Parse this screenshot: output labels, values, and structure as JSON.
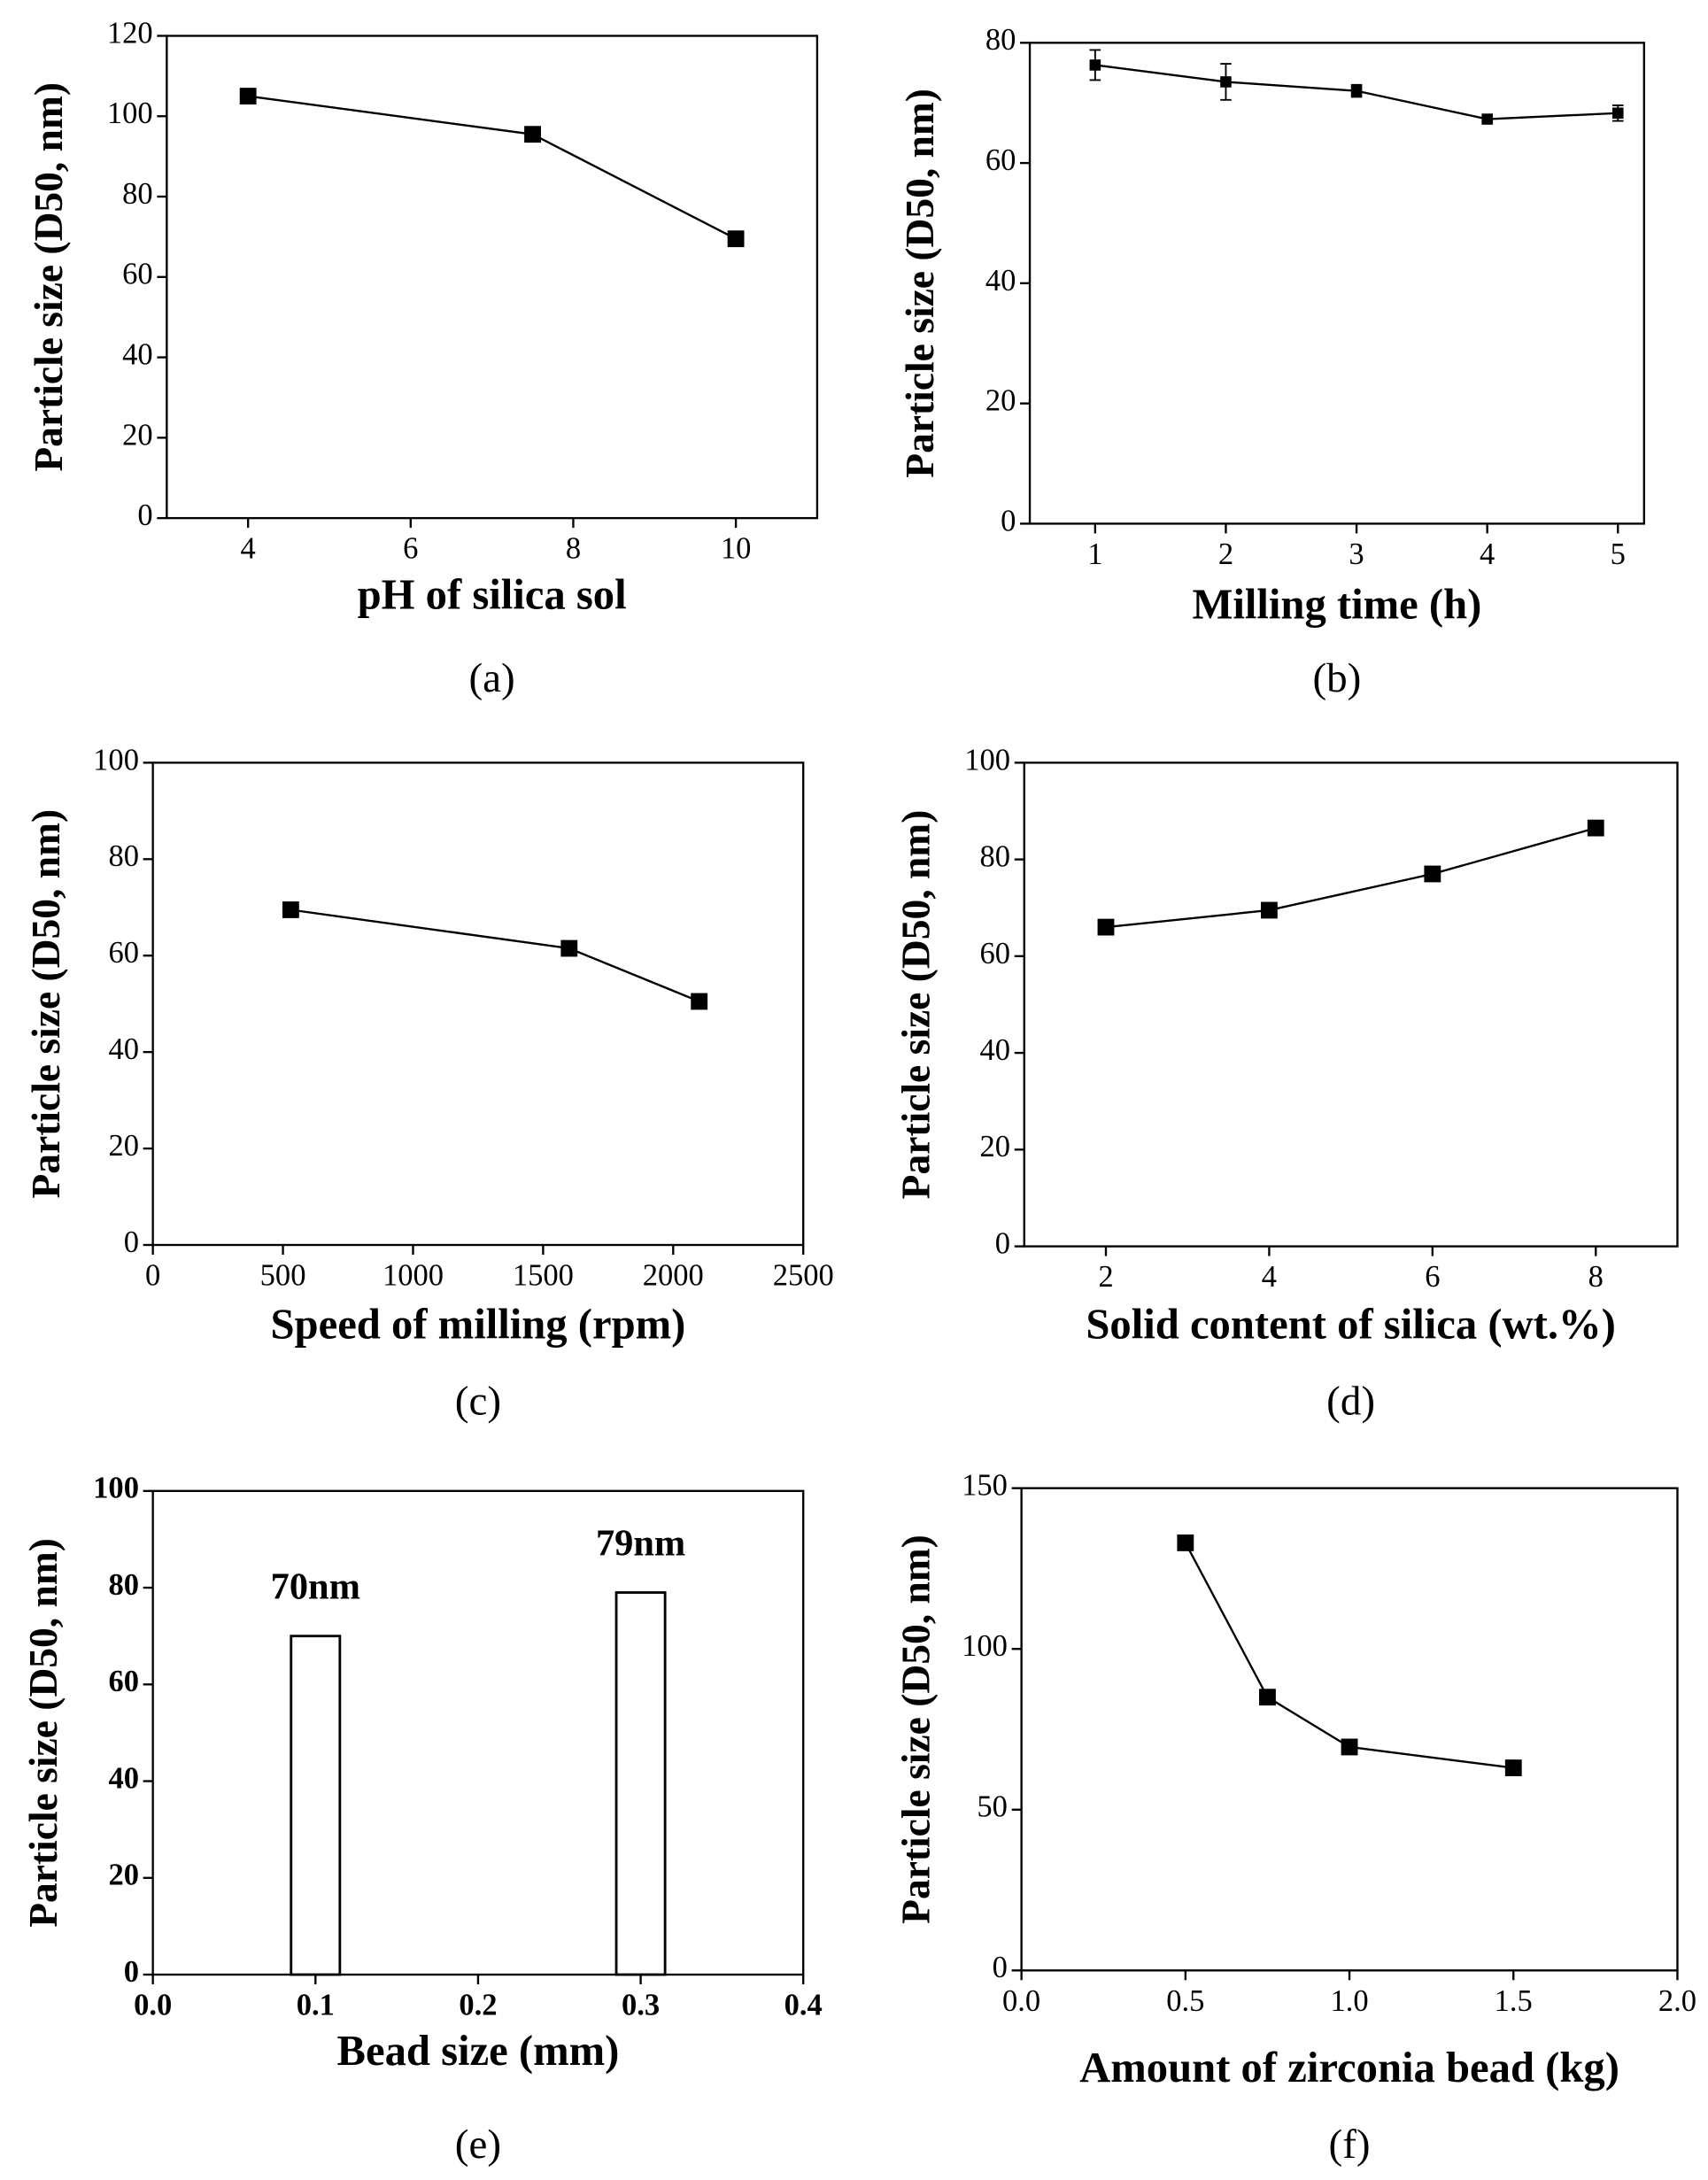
{
  "chart_data": [
    {
      "type": "line",
      "xlabel": "pH of silica sol",
      "ylabel": "Particle size (D50, nm)",
      "panel": "(a)",
      "x": [
        4,
        7.5,
        10
      ],
      "values": [
        105,
        95.5,
        69.5
      ],
      "color": "#000000",
      "xlim": [
        3,
        11
      ],
      "xticks": [
        4,
        6,
        8,
        10
      ],
      "ylim": [
        0,
        120
      ],
      "yticks": [
        0,
        20,
        40,
        60,
        80,
        100,
        120
      ]
    },
    {
      "type": "line",
      "xlabel": "Milling time (h)",
      "ylabel": "Particle size (D50, nm)",
      "panel": "(b)",
      "x": [
        1,
        2,
        3,
        4,
        5
      ],
      "values": [
        76.3,
        73.5,
        72,
        67.3,
        68.3
      ],
      "errors": [
        2.5,
        3,
        1,
        0.5,
        1.3
      ],
      "color": "#000000",
      "xlim": [
        0.5,
        5.2
      ],
      "xticks": [
        1,
        2,
        3,
        4,
        5
      ],
      "ylim": [
        0,
        80
      ],
      "yticks": [
        0,
        20,
        40,
        60,
        80
      ]
    },
    {
      "type": "line",
      "xlabel": "Speed of milling (rpm)",
      "ylabel": "Particle size (D50, nm)",
      "panel": "(c)",
      "x": [
        530,
        1600,
        2100
      ],
      "values": [
        69.5,
        61.5,
        50.5
      ],
      "color": "#000000",
      "xlim": [
        0,
        2500
      ],
      "xticks": [
        0,
        500,
        1000,
        1500,
        2000,
        2500
      ],
      "ylim": [
        0,
        100
      ],
      "yticks": [
        0,
        20,
        40,
        60,
        80,
        100
      ]
    },
    {
      "type": "line",
      "xlabel": "Solid content of silica (wt.%)",
      "ylabel": "Particle size (D50, nm)",
      "panel": "(d)",
      "x": [
        2,
        4,
        6,
        8
      ],
      "values": [
        66,
        69.5,
        77,
        86.5
      ],
      "color": "#000000",
      "xlim": [
        1,
        9
      ],
      "xticks": [
        2,
        4,
        6,
        8
      ],
      "ylim": [
        0,
        100
      ],
      "yticks": [
        0,
        20,
        40,
        60,
        80,
        100
      ]
    },
    {
      "type": "bar",
      "xlabel": "Bead size (mm)",
      "ylabel": "Particle size (D50, nm)",
      "panel": "(e)",
      "x": [
        0.1,
        0.3
      ],
      "values": [
        70,
        79
      ],
      "value_labels": [
        "70nm",
        "79nm"
      ],
      "color": "#ffffff",
      "xlim": [
        0,
        0.4
      ],
      "xticks": [
        {
          "value": 0,
          "label": "0.0"
        },
        0.1,
        0.2,
        0.3,
        0.4
      ],
      "ylim": [
        0,
        100
      ],
      "yticks": [
        0,
        20,
        40,
        60,
        80,
        100
      ]
    },
    {
      "type": "line",
      "xlabel": "Amount of zirconia bead (kg)",
      "ylabel": "Particle size (D50, nm)",
      "panel": "(f)",
      "x": [
        0.5,
        0.75,
        1.0,
        1.5
      ],
      "values": [
        133,
        85,
        69.5,
        63
      ],
      "color": "#000000",
      "xlim": [
        0,
        2
      ],
      "xticks": [
        {
          "value": 0,
          "label": "0.0"
        },
        0.5,
        {
          "value": 1,
          "label": "1.0"
        },
        1.5,
        {
          "value": 2,
          "label": "2.0"
        }
      ],
      "ylim": [
        0,
        150
      ],
      "yticks": [
        0,
        50,
        100,
        150
      ]
    }
  ]
}
